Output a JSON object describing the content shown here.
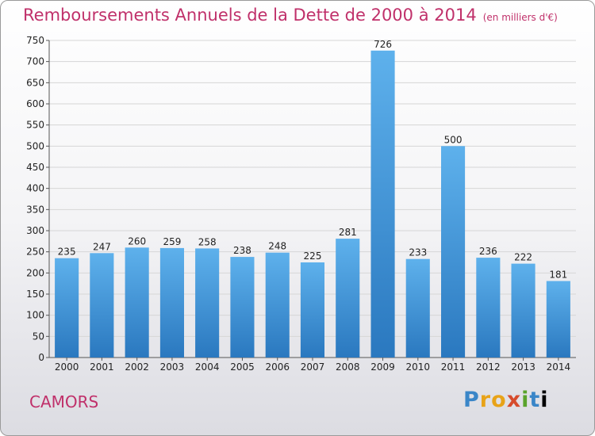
{
  "header": {
    "title": "Remboursements Annuels de la Dette de 2000 à 2014",
    "subtitle": "(en milliers d'€)"
  },
  "footer": {
    "commune": "CAMORS",
    "brand": "Proxiti"
  },
  "colors": {
    "title": "#c0306a",
    "bar_top": "#5eb1ec",
    "bar_bottom": "#2a78bf"
  },
  "chart_data": {
    "type": "bar",
    "title": "Remboursements Annuels de la Dette de 2000 à 2014",
    "subtitle": "(en milliers d'€)",
    "xlabel": "",
    "ylabel": "",
    "categories": [
      "2000",
      "2001",
      "2002",
      "2003",
      "2004",
      "2005",
      "2006",
      "2007",
      "2008",
      "2009",
      "2010",
      "2011",
      "2012",
      "2013",
      "2014"
    ],
    "values": [
      235,
      247,
      260,
      259,
      258,
      238,
      248,
      225,
      281,
      726,
      233,
      500,
      236,
      222,
      181
    ],
    "ylim": [
      0,
      750
    ],
    "yticks": [
      0,
      50,
      100,
      150,
      200,
      250,
      300,
      350,
      400,
      450,
      500,
      550,
      600,
      650,
      700,
      750
    ],
    "grid": true,
    "data_labels": true
  }
}
